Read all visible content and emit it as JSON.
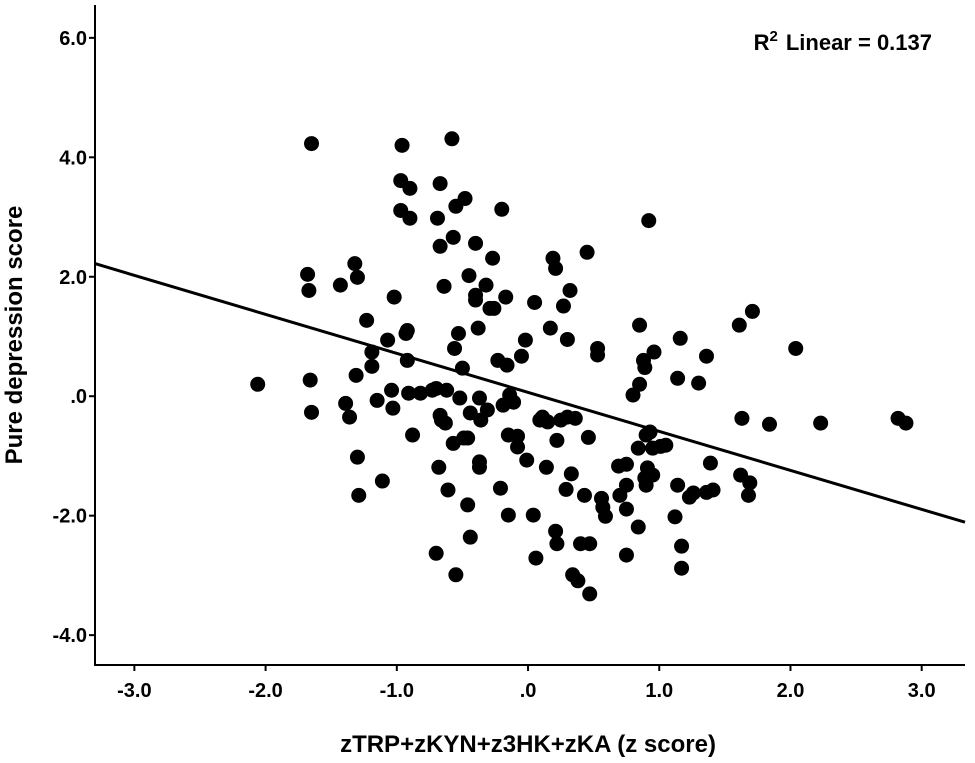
{
  "chart_data": {
    "type": "scatter",
    "xlabel": "zTRP+zKYN+z3HK+zKA (z score)",
    "ylabel": "Pure depression score",
    "annotation": {
      "r": "R",
      "sup": "2",
      "text": "Linear = 0.137"
    },
    "xlim": [
      -3.3,
      3.33
    ],
    "ylim": [
      -4.5,
      6.55
    ],
    "xticks": [
      {
        "value": -3,
        "label": "-3.0"
      },
      {
        "value": -2,
        "label": "-2.0"
      },
      {
        "value": -1,
        "label": "-1.0"
      },
      {
        "value": 0,
        "label": ".0"
      },
      {
        "value": 1,
        "label": "1.0"
      },
      {
        "value": 2,
        "label": "2.0"
      },
      {
        "value": 3,
        "label": "3.0"
      }
    ],
    "yticks": [
      {
        "value": -4,
        "label": "-4.0"
      },
      {
        "value": -2,
        "label": "-2.0"
      },
      {
        "value": 0,
        "label": ".0"
      },
      {
        "value": 2,
        "label": "2.0"
      },
      {
        "value": 4,
        "label": "4.0"
      },
      {
        "value": 6,
        "label": "6.0"
      }
    ],
    "color": "#000000",
    "fit_line": {
      "x": [
        -3.3,
        3.33
      ],
      "y": [
        2.22,
        -2.11
      ]
    },
    "x": [
      -2.06,
      -1.65,
      -1.68,
      -1.67,
      -1.66,
      -1.65,
      -1.43,
      -1.32,
      -1.3,
      -1.31,
      -1.39,
      -1.36,
      -1.3,
      -1.29,
      -1.23,
      -1.19,
      -1.19,
      -1.15,
      -1.11,
      -1.07,
      -1.04,
      -1.03,
      -1.02,
      -0.96,
      -0.97,
      -0.9,
      -0.97,
      -0.9,
      -0.92,
      -0.93,
      -0.92,
      -0.91,
      -0.88,
      -0.82,
      -0.73,
      -0.7,
      -0.67,
      -0.69,
      -0.67,
      -0.64,
      -0.67,
      -0.66,
      -0.62,
      -0.63,
      -0.68,
      -0.7,
      -0.61,
      -0.58,
      -0.57,
      -0.56,
      -0.55,
      -0.48,
      -0.5,
      -0.52,
      -0.49,
      -0.57,
      -0.55,
      -0.53,
      -0.46,
      -0.45,
      -0.44,
      -0.46,
      -0.44,
      -0.4,
      -0.4,
      -0.4,
      -0.38,
      -0.37,
      -0.37,
      -0.37,
      -0.36,
      -0.31,
      -0.32,
      -0.29,
      -0.27,
      -0.26,
      -0.23,
      -0.2,
      -0.19,
      -0.21,
      -0.17,
      -0.16,
      -0.15,
      -0.14,
      -0.15,
      -0.11,
      -0.08,
      -0.08,
      -0.05,
      -0.02,
      -0.01,
      0.04,
      0.06,
      0.05,
      0.09,
      0.11,
      0.14,
      0.15,
      0.17,
      0.19,
      0.21,
      0.22,
      0.21,
      0.22,
      0.25,
      0.27,
      0.3,
      0.29,
      0.3,
      0.32,
      0.33,
      0.34,
      0.36,
      0.38,
      0.4,
      0.43,
      0.45,
      0.46,
      0.47,
      0.47,
      0.53,
      0.53,
      0.56,
      0.57,
      0.59,
      0.69,
      0.7,
      0.75,
      0.75,
      0.75,
      0.75,
      0.8,
      0.84,
      0.85,
      0.84,
      0.85,
      0.88,
      0.89,
      0.91,
      0.89,
      0.9,
      0.9,
      0.92,
      0.93,
      0.95,
      0.96,
      0.95,
      1.01,
      1.05,
      1.12,
      1.14,
      1.14,
      1.16,
      1.17,
      1.17,
      1.23,
      1.26,
      1.3,
      1.36,
      1.36,
      1.39,
      1.41,
      1.62,
      1.61,
      1.63,
      1.68,
      1.69,
      1.71,
      1.84,
      2.04,
      2.23,
      2.82,
      2.88
    ],
    "values": [
      0.2,
      4.23,
      2.04,
      1.77,
      0.27,
      -0.27,
      1.86,
      2.22,
      1.99,
      0.35,
      -0.12,
      -0.35,
      -1.02,
      -1.66,
      1.27,
      0.74,
      0.5,
      -0.07,
      -1.42,
      0.94,
      0.1,
      -0.2,
      1.66,
      4.2,
      3.61,
      3.48,
      3.11,
      2.98,
      1.1,
      1.05,
      0.6,
      0.05,
      -0.65,
      0.05,
      0.1,
      0.13,
      3.56,
      2.98,
      2.51,
      1.84,
      -0.32,
      -0.4,
      0.1,
      -0.45,
      -1.19,
      -2.63,
      -1.57,
      4.31,
      2.66,
      0.8,
      3.18,
      3.31,
      0.47,
      -0.03,
      -0.7,
      -0.79,
      -2.99,
      1.05,
      -0.7,
      2.02,
      -0.28,
      -1.82,
      -2.36,
      2.56,
      1.69,
      1.61,
      1.14,
      -0.03,
      -1.1,
      -1.19,
      -0.4,
      -0.23,
      1.86,
      1.47,
      2.31,
      1.47,
      0.6,
      3.13,
      -0.15,
      -1.54,
      1.66,
      0.52,
      -1.99,
      0.02,
      -0.65,
      -0.1,
      -0.67,
      -0.85,
      0.67,
      0.94,
      -1.07,
      -1.99,
      -2.71,
      1.57,
      -0.4,
      -0.35,
      -1.19,
      -0.43,
      1.14,
      2.31,
      2.14,
      -0.74,
      -2.26,
      -2.47,
      -0.4,
      1.51,
      0.95,
      -1.56,
      -0.35,
      1.77,
      -1.3,
      -2.99,
      -0.37,
      -3.09,
      -2.47,
      -1.66,
      2.41,
      -0.69,
      -2.47,
      -3.31,
      0.8,
      0.69,
      -1.71,
      -1.86,
      -2.01,
      -1.17,
      -1.66,
      -1.14,
      -1.89,
      -1.49,
      -2.66,
      0.02,
      -0.87,
      0.2,
      -2.19,
      1.19,
      0.6,
      0.48,
      -1.2,
      -1.37,
      -1.49,
      -0.65,
      2.94,
      -0.6,
      -0.87,
      0.74,
      -1.32,
      -0.84,
      -0.82,
      -2.02,
      -1.49,
      0.3,
      0.97,
      -2.51,
      -2.88,
      -1.69,
      -1.62,
      0.22,
      -1.61,
      0.67,
      -1.12,
      -1.57,
      -1.32,
      1.19,
      -0.37,
      -1.66,
      -1.45,
      1.42,
      -0.47,
      0.8,
      -0.45,
      -0.37,
      -0.45
    ]
  }
}
